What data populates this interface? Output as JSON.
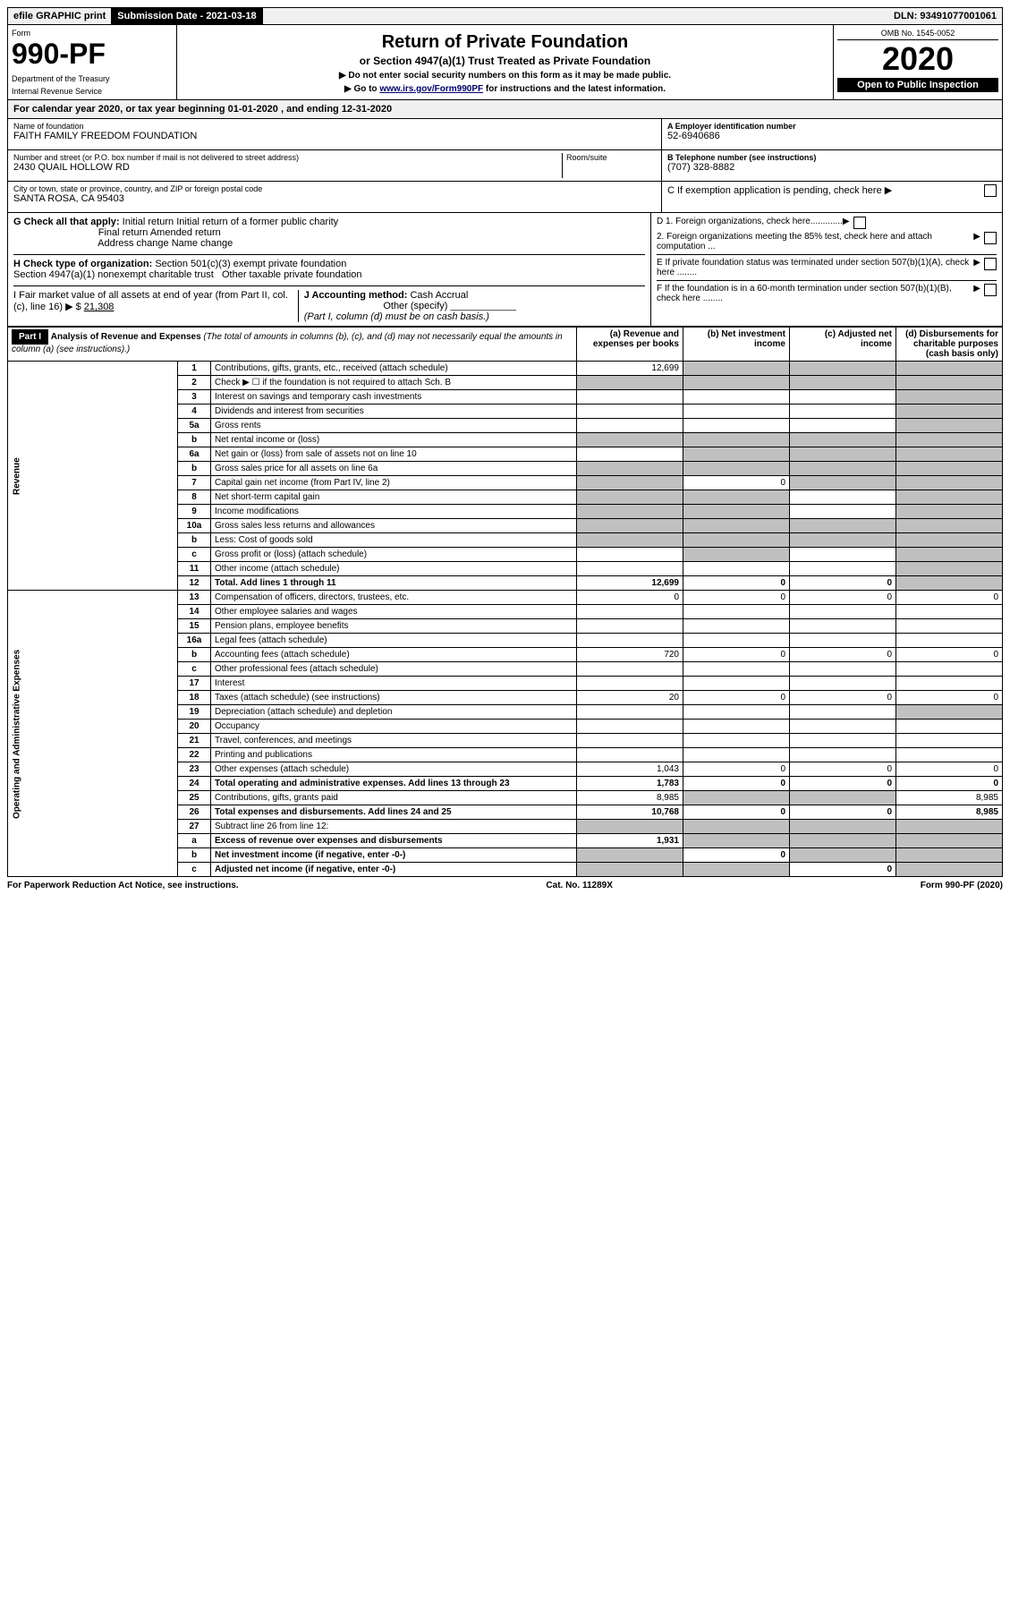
{
  "topbar": {
    "efile": "efile GRAPHIC print",
    "submission_label": "Submission Date - 2021-03-18",
    "dln": "DLN: 93491077001061"
  },
  "header": {
    "form_label": "Form",
    "form_number": "990-PF",
    "dept1": "Department of the Treasury",
    "dept2": "Internal Revenue Service",
    "title": "Return of Private Foundation",
    "subtitle": "or Section 4947(a)(1) Trust Treated as Private Foundation",
    "note1": "▶ Do not enter social security numbers on this form as it may be made public.",
    "note2_pre": "▶ Go to ",
    "note2_link": "www.irs.gov/Form990PF",
    "note2_post": " for instructions and the latest information.",
    "omb": "OMB No. 1545-0052",
    "year": "2020",
    "open": "Open to Public Inspection"
  },
  "calyear": "For calendar year 2020, or tax year beginning 01-01-2020          , and ending 12-31-2020",
  "foundation": {
    "name_label": "Name of foundation",
    "name": "FAITH FAMILY FREEDOM FOUNDATION",
    "addr_label": "Number and street (or P.O. box number if mail is not delivered to street address)",
    "addr": "2430 QUAIL HOLLOW RD",
    "room_label": "Room/suite",
    "city_label": "City or town, state or province, country, and ZIP or foreign postal code",
    "city": "SANTA ROSA, CA  95403",
    "ein_label": "A Employer identification number",
    "ein": "52-6940686",
    "tel_label": "B Telephone number (see instructions)",
    "tel": "(707) 328-8882",
    "c_label": "C If exemption application is pending, check here ▶"
  },
  "sectionG": {
    "label": "G Check all that apply:",
    "opts": [
      "Initial return",
      "Initial return of a former public charity",
      "Final return",
      "Amended return",
      "Address change",
      "Name change"
    ]
  },
  "sectionH": {
    "label": "H Check type of organization:",
    "opts": [
      "Section 501(c)(3) exempt private foundation",
      "Section 4947(a)(1) nonexempt charitable trust",
      "Other taxable private foundation"
    ]
  },
  "sectionI": {
    "label": "I Fair market value of all assets at end of year (from Part II, col. (c), line 16) ▶ $",
    "value": "21,308"
  },
  "sectionJ": {
    "label": "J Accounting method:",
    "cash": "Cash",
    "accrual": "Accrual",
    "other": "Other (specify)",
    "note": "(Part I, column (d) must be on cash basis.)"
  },
  "sectionD": {
    "d1": "D 1. Foreign organizations, check here.............",
    "d2": "2. Foreign organizations meeting the 85% test, check here and attach computation ...",
    "e": "E  If private foundation status was terminated under section 507(b)(1)(A), check here ........",
    "f": "F  If the foundation is in a 60-month termination under section 507(b)(1)(B), check here ........"
  },
  "part1": {
    "label": "Part I",
    "title": "Analysis of Revenue and Expenses",
    "title_sub": "(The total of amounts in columns (b), (c), and (d) may not necessarily equal the amounts in column (a) (see instructions).)",
    "col_a": "(a) Revenue and expenses per books",
    "col_b": "(b) Net investment income",
    "col_c": "(c) Adjusted net income",
    "col_d": "(d) Disbursements for charitable purposes (cash basis only)"
  },
  "vert_labels": {
    "revenue": "Revenue",
    "expenses": "Operating and Administrative Expenses"
  },
  "rows": [
    {
      "n": "1",
      "desc": "Contributions, gifts, grants, etc., received (attach schedule)",
      "a": "12,699",
      "b": "shaded",
      "c": "shaded",
      "d": "shaded"
    },
    {
      "n": "2",
      "desc": "Check ▶ ☐ if the foundation is not required to attach Sch. B",
      "a": "shaded",
      "b": "shaded",
      "c": "shaded",
      "d": "shaded"
    },
    {
      "n": "3",
      "desc": "Interest on savings and temporary cash investments",
      "a": "",
      "b": "",
      "c": "",
      "d": "shaded"
    },
    {
      "n": "4",
      "desc": "Dividends and interest from securities",
      "a": "",
      "b": "",
      "c": "",
      "d": "shaded"
    },
    {
      "n": "5a",
      "desc": "Gross rents",
      "a": "",
      "b": "",
      "c": "",
      "d": "shaded"
    },
    {
      "n": "b",
      "desc": "Net rental income or (loss)",
      "a": "shaded",
      "b": "shaded",
      "c": "shaded",
      "d": "shaded"
    },
    {
      "n": "6a",
      "desc": "Net gain or (loss) from sale of assets not on line 10",
      "a": "",
      "b": "shaded",
      "c": "shaded",
      "d": "shaded"
    },
    {
      "n": "b",
      "desc": "Gross sales price for all assets on line 6a",
      "a": "shaded",
      "b": "shaded",
      "c": "shaded",
      "d": "shaded"
    },
    {
      "n": "7",
      "desc": "Capital gain net income (from Part IV, line 2)",
      "a": "shaded",
      "b": "0",
      "c": "shaded",
      "d": "shaded"
    },
    {
      "n": "8",
      "desc": "Net short-term capital gain",
      "a": "shaded",
      "b": "shaded",
      "c": "",
      "d": "shaded"
    },
    {
      "n": "9",
      "desc": "Income modifications",
      "a": "shaded",
      "b": "shaded",
      "c": "",
      "d": "shaded"
    },
    {
      "n": "10a",
      "desc": "Gross sales less returns and allowances",
      "a": "shaded",
      "b": "shaded",
      "c": "shaded",
      "d": "shaded"
    },
    {
      "n": "b",
      "desc": "Less: Cost of goods sold",
      "a": "shaded",
      "b": "shaded",
      "c": "shaded",
      "d": "shaded"
    },
    {
      "n": "c",
      "desc": "Gross profit or (loss) (attach schedule)",
      "a": "",
      "b": "shaded",
      "c": "",
      "d": "shaded"
    },
    {
      "n": "11",
      "desc": "Other income (attach schedule)",
      "a": "",
      "b": "",
      "c": "",
      "d": "shaded"
    },
    {
      "n": "12",
      "desc": "Total. Add lines 1 through 11",
      "a": "12,699",
      "b": "0",
      "c": "0",
      "d": "shaded",
      "bold": true
    },
    {
      "n": "13",
      "desc": "Compensation of officers, directors, trustees, etc.",
      "a": "0",
      "b": "0",
      "c": "0",
      "d": "0"
    },
    {
      "n": "14",
      "desc": "Other employee salaries and wages",
      "a": "",
      "b": "",
      "c": "",
      "d": ""
    },
    {
      "n": "15",
      "desc": "Pension plans, employee benefits",
      "a": "",
      "b": "",
      "c": "",
      "d": ""
    },
    {
      "n": "16a",
      "desc": "Legal fees (attach schedule)",
      "a": "",
      "b": "",
      "c": "",
      "d": ""
    },
    {
      "n": "b",
      "desc": "Accounting fees (attach schedule)",
      "a": "720",
      "b": "0",
      "c": "0",
      "d": "0"
    },
    {
      "n": "c",
      "desc": "Other professional fees (attach schedule)",
      "a": "",
      "b": "",
      "c": "",
      "d": ""
    },
    {
      "n": "17",
      "desc": "Interest",
      "a": "",
      "b": "",
      "c": "",
      "d": ""
    },
    {
      "n": "18",
      "desc": "Taxes (attach schedule) (see instructions)",
      "a": "20",
      "b": "0",
      "c": "0",
      "d": "0"
    },
    {
      "n": "19",
      "desc": "Depreciation (attach schedule) and depletion",
      "a": "",
      "b": "",
      "c": "",
      "d": "shaded"
    },
    {
      "n": "20",
      "desc": "Occupancy",
      "a": "",
      "b": "",
      "c": "",
      "d": ""
    },
    {
      "n": "21",
      "desc": "Travel, conferences, and meetings",
      "a": "",
      "b": "",
      "c": "",
      "d": ""
    },
    {
      "n": "22",
      "desc": "Printing and publications",
      "a": "",
      "b": "",
      "c": "",
      "d": ""
    },
    {
      "n": "23",
      "desc": "Other expenses (attach schedule)",
      "a": "1,043",
      "b": "0",
      "c": "0",
      "d": "0"
    },
    {
      "n": "24",
      "desc": "Total operating and administrative expenses. Add lines 13 through 23",
      "a": "1,783",
      "b": "0",
      "c": "0",
      "d": "0",
      "bold": true
    },
    {
      "n": "25",
      "desc": "Contributions, gifts, grants paid",
      "a": "8,985",
      "b": "shaded",
      "c": "shaded",
      "d": "8,985"
    },
    {
      "n": "26",
      "desc": "Total expenses and disbursements. Add lines 24 and 25",
      "a": "10,768",
      "b": "0",
      "c": "0",
      "d": "8,985",
      "bold": true
    },
    {
      "n": "27",
      "desc": "Subtract line 26 from line 12:",
      "a": "shaded",
      "b": "shaded",
      "c": "shaded",
      "d": "shaded"
    },
    {
      "n": "a",
      "desc": "Excess of revenue over expenses and disbursements",
      "a": "1,931",
      "b": "shaded",
      "c": "shaded",
      "d": "shaded",
      "bold": true
    },
    {
      "n": "b",
      "desc": "Net investment income (if negative, enter -0-)",
      "a": "shaded",
      "b": "0",
      "c": "shaded",
      "d": "shaded",
      "bold": true
    },
    {
      "n": "c",
      "desc": "Adjusted net income (if negative, enter -0-)",
      "a": "shaded",
      "b": "shaded",
      "c": "0",
      "d": "shaded",
      "bold": true
    }
  ],
  "footer": {
    "left": "For Paperwork Reduction Act Notice, see instructions.",
    "center": "Cat. No. 11289X",
    "right": "Form 990-PF (2020)"
  }
}
